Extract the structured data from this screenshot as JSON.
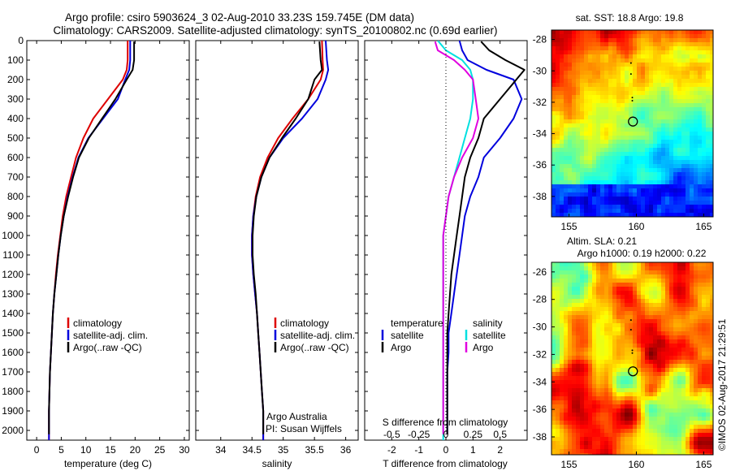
{
  "title": {
    "line1": "Argo profile: csiro 5903624_3 02-Aug-2010 33.23S 159.745E (DM data)",
    "line2": "Climatology: CARS2009. Satellite-adjusted climatology: synTS_20100802.nc (0.69d earlier)"
  },
  "timestamp": "©IMOS 02-Aug-2017 21:29:51",
  "colors": {
    "clim": "#dd0000",
    "sat": "#0000dd",
    "argo": "#000000",
    "sat_s": "#00e0e0",
    "argo_s": "#e000e0"
  },
  "chart_data": [
    {
      "id": "temperature",
      "type": "line",
      "xlabel": "temperature (deg C)",
      "ylabel": "",
      "xlim": [
        -2,
        31
      ],
      "ylim": [
        2050,
        0
      ],
      "xticks": [
        0,
        5,
        10,
        15,
        20,
        25,
        30
      ],
      "yticks": [
        0,
        100,
        200,
        300,
        400,
        500,
        600,
        700,
        800,
        900,
        1000,
        1100,
        1200,
        1300,
        1400,
        1500,
        1600,
        1700,
        1800,
        1900,
        2000
      ],
      "legend": [
        "climatology",
        "satellite-adj. clim.",
        "Argo(..raw -QC)"
      ],
      "series": [
        {
          "name": "climatology",
          "color": "clim",
          "x": [
            18.5,
            18.5,
            18.3,
            17.5,
            14.5,
            11.5,
            9.5,
            8.0,
            7.0,
            6.0,
            5.3,
            4.8,
            4.3,
            3.9,
            3.6,
            3.3,
            3.1,
            2.9,
            2.7,
            2.6,
            2.5,
            2.5
          ],
          "y": [
            0,
            100,
            150,
            200,
            300,
            400,
            500,
            600,
            700,
            800,
            900,
            1000,
            1100,
            1200,
            1300,
            1400,
            1500,
            1600,
            1700,
            1800,
            1900,
            2050
          ]
        },
        {
          "name": "satellite-adj. clim.",
          "color": "sat",
          "x": [
            19.0,
            19.0,
            18.8,
            18.0,
            16.5,
            13.5,
            10.5,
            8.5,
            7.3,
            6.3,
            5.5,
            4.9,
            4.4,
            4.0,
            3.6,
            3.3,
            3.1,
            2.9,
            2.7,
            2.6,
            2.5,
            2.5
          ],
          "y": [
            0,
            100,
            150,
            200,
            300,
            400,
            500,
            600,
            700,
            800,
            900,
            1000,
            1100,
            1200,
            1300,
            1400,
            1500,
            1600,
            1700,
            1800,
            1900,
            2050
          ]
        },
        {
          "name": "Argo(..raw -QC)",
          "color": "argo",
          "x": [
            19.8,
            19.8,
            19.5,
            18.3,
            16.0,
            13.3,
            10.6,
            8.6,
            7.4,
            6.4,
            5.5,
            4.9,
            4.4,
            4.0,
            3.6,
            3.3,
            3.1,
            2.9,
            2.7,
            2.6,
            2.5,
            2.5
          ],
          "y": [
            5,
            100,
            150,
            200,
            300,
            400,
            500,
            600,
            700,
            800,
            900,
            1000,
            1100,
            1200,
            1300,
            1400,
            1500,
            1600,
            1700,
            1800,
            1900,
            2020
          ]
        }
      ]
    },
    {
      "id": "salinity",
      "type": "line",
      "xlabel": "salinity",
      "ylabel": "",
      "xlim": [
        33.6,
        36.2
      ],
      "ylim": [
        2050,
        0
      ],
      "xticks": [
        34,
        34.5,
        35,
        35.5,
        36
      ],
      "legend": [
        "climatology",
        "satellite-adj. clim.",
        "Argo(..raw -QC)"
      ],
      "annotation": [
        "Argo Australia",
        "PI: Susan Wijffels"
      ],
      "series": [
        {
          "name": "climatology",
          "color": "clim",
          "x": [
            35.62,
            35.63,
            35.64,
            35.6,
            35.4,
            35.15,
            34.92,
            34.75,
            34.63,
            34.56,
            34.52,
            34.5,
            34.5,
            34.52,
            34.55,
            34.58,
            34.6,
            34.62,
            34.64,
            34.66,
            34.68,
            34.68
          ],
          "y": [
            0,
            100,
            150,
            200,
            300,
            400,
            500,
            600,
            700,
            800,
            900,
            1000,
            1100,
            1200,
            1300,
            1400,
            1500,
            1600,
            1700,
            1800,
            1900,
            2050
          ]
        },
        {
          "name": "satellite-adj. clim.",
          "color": "sat",
          "x": [
            35.68,
            35.7,
            35.72,
            35.68,
            35.55,
            35.3,
            35.0,
            34.78,
            34.65,
            34.57,
            34.52,
            34.5,
            34.5,
            34.52,
            34.55,
            34.58,
            34.6,
            34.62,
            34.64,
            34.66,
            34.68,
            34.68
          ],
          "y": [
            0,
            100,
            150,
            200,
            300,
            400,
            500,
            600,
            700,
            800,
            900,
            1000,
            1100,
            1200,
            1300,
            1400,
            1500,
            1600,
            1700,
            1800,
            1900,
            2050
          ]
        },
        {
          "name": "Argo(..raw -QC)",
          "color": "argo",
          "x": [
            35.58,
            35.6,
            35.62,
            35.5,
            35.4,
            35.2,
            34.98,
            34.78,
            34.65,
            34.57,
            34.53,
            34.51,
            34.51,
            34.53,
            34.56,
            34.58,
            34.6,
            34.62,
            34.64,
            34.66,
            34.68,
            34.68
          ],
          "y": [
            5,
            100,
            150,
            200,
            300,
            400,
            500,
            600,
            700,
            800,
            900,
            1000,
            1100,
            1200,
            1300,
            1400,
            1500,
            1600,
            1700,
            1800,
            1900,
            2020
          ]
        }
      ]
    },
    {
      "id": "difference",
      "type": "line",
      "xlabel": "T difference from climatology",
      "xlabel2": "S difference from climatology",
      "xlim": [
        -3,
        3
      ],
      "ylim": [
        2050,
        0
      ],
      "xticks": [
        -2,
        -1,
        0,
        1,
        2
      ],
      "xticks2_labels": [
        "-0.5",
        "-0.25",
        "0",
        "0.25",
        "0.5"
      ],
      "xticks2_pos": [
        -2,
        -1,
        0,
        1,
        2
      ],
      "legend_t_title": "temperature",
      "legend_s_title": "salinity",
      "legend": [
        "satellite",
        "Argo",
        "satellite",
        "Argo"
      ],
      "series": [
        {
          "name": "satellite",
          "group": "temperature",
          "color": "sat",
          "x": [
            0.5,
            0.6,
            0.8,
            1.5,
            2.5,
            2.8,
            2.5,
            2.0,
            1.4,
            1.2,
            0.9,
            0.7,
            0.6,
            0.5,
            0.4,
            0.3,
            0.2,
            0.1,
            0.1,
            0.05,
            0.05,
            0.05
          ],
          "y": [
            0,
            50,
            100,
            150,
            200,
            300,
            400,
            500,
            600,
            700,
            800,
            900,
            1000,
            1100,
            1200,
            1300,
            1400,
            1500,
            1600,
            1700,
            1800,
            2020
          ]
        },
        {
          "name": "Argo",
          "group": "temperature",
          "color": "argo",
          "x": [
            1.3,
            1.6,
            2.2,
            2.9,
            2.6,
            2.0,
            1.4,
            1.2,
            0.9,
            0.7,
            0.6,
            0.5,
            0.4,
            0.3,
            0.2,
            0.15,
            0.1,
            0.05,
            0.05,
            0.05,
            0.05
          ],
          "y": [
            5,
            50,
            100,
            150,
            200,
            300,
            400,
            500,
            600,
            700,
            800,
            900,
            1000,
            1100,
            1200,
            1300,
            1400,
            1500,
            1600,
            1700,
            2020
          ]
        },
        {
          "name": "satellite",
          "group": "salinity",
          "color": "sat_s",
          "x": [
            -0.3,
            0.0,
            0.6,
            0.9,
            1.0,
            1.0,
            0.9,
            0.7,
            0.5,
            0.3,
            0.1,
            0.0,
            -0.1,
            -0.1,
            -0.1,
            -0.1
          ],
          "y": [
            0,
            50,
            100,
            150,
            200,
            300,
            400,
            500,
            600,
            700,
            800,
            900,
            1000,
            1200,
            1500,
            2050
          ]
        },
        {
          "name": "Argo",
          "group": "salinity",
          "color": "argo_s",
          "x": [
            -0.4,
            -0.3,
            0.3,
            0.7,
            1.0,
            1.1,
            1.2,
            1.0,
            0.6,
            0.3,
            0.1,
            0.0,
            -0.1,
            -0.1,
            -0.1
          ],
          "y": [
            5,
            50,
            100,
            150,
            200,
            300,
            400,
            500,
            600,
            700,
            800,
            900,
            1000,
            1500,
            2020
          ]
        }
      ]
    },
    {
      "id": "sst_map",
      "type": "heatmap",
      "title": "sat. SST: 18.8 Argo: 19.8",
      "xticks": [
        155,
        160,
        165
      ],
      "yticks": [
        -28,
        -30,
        -32,
        -34,
        -36,
        -38
      ],
      "xlim": [
        153.7,
        165.7
      ],
      "ylim": [
        -39.3,
        -27.4
      ],
      "argo_position": [
        159.745,
        -33.23
      ]
    },
    {
      "id": "sla_map",
      "type": "heatmap",
      "title": "Altim. SLA: 0.21",
      "subtitle": "Argo h1000: 0.19 h2000: 0.22",
      "xticks": [
        155,
        160,
        165
      ],
      "yticks": [
        -26,
        -28,
        -30,
        -32,
        -34,
        -36,
        -38
      ],
      "xlim": [
        153.7,
        165.7
      ],
      "ylim": [
        -39.3,
        -25.3
      ],
      "argo_position": [
        159.745,
        -33.23
      ]
    }
  ]
}
